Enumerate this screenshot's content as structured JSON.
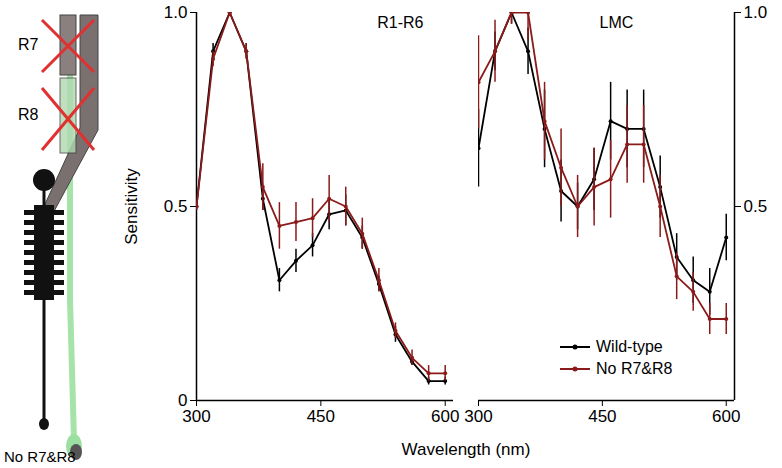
{
  "chart_data": [
    {
      "type": "line",
      "title": "R1-R6",
      "ylabel": "Sensitivity",
      "marker": "circle",
      "x": [
        300,
        320,
        340,
        360,
        380,
        400,
        420,
        440,
        460,
        480,
        500,
        520,
        540,
        560,
        580,
        600
      ],
      "xlim": [
        300,
        610
      ],
      "xticks": [
        300,
        450,
        600
      ],
      "ylim": [
        0,
        1
      ],
      "yticks": [
        0,
        {
          "value": 0.5,
          "label": "0.5"
        },
        {
          "value": 1,
          "label": "1.0"
        }
      ],
      "series": [
        {
          "name": "Wild-type",
          "color": "#000000",
          "values": [
            0.5,
            0.9,
            1.0,
            0.9,
            0.52,
            0.31,
            0.36,
            0.4,
            0.48,
            0.49,
            0.42,
            0.3,
            0.17,
            0.1,
            0.05,
            0.05
          ],
          "errors": [
            0.01,
            0.02,
            0.01,
            0.02,
            0.03,
            0.03,
            0.03,
            0.03,
            0.04,
            0.04,
            0.03,
            0.02,
            0.02,
            0.01,
            0.01,
            0.01
          ]
        },
        {
          "name": "No R7&R8",
          "color": "#8b1a1a",
          "values": [
            0.5,
            0.88,
            1.0,
            0.9,
            0.55,
            0.45,
            0.46,
            0.47,
            0.52,
            0.5,
            0.43,
            0.31,
            0.18,
            0.11,
            0.07,
            0.07
          ],
          "errors": [
            0.01,
            0.02,
            0.01,
            0.02,
            0.06,
            0.06,
            0.05,
            0.05,
            0.06,
            0.05,
            0.04,
            0.03,
            0.02,
            0.02,
            0.02,
            0.02
          ]
        }
      ]
    },
    {
      "type": "line",
      "title": "LMC",
      "marker": "circle",
      "x": [
        300,
        320,
        340,
        360,
        380,
        400,
        420,
        440,
        460,
        480,
        500,
        520,
        540,
        560,
        580,
        600
      ],
      "xlim": [
        300,
        610
      ],
      "xticks": [
        300,
        450,
        600
      ],
      "ylim": [
        0,
        1
      ],
      "yticks": [
        {
          "value": 0.5,
          "label": "0.5"
        },
        {
          "value": 1,
          "label": "1.0"
        }
      ],
      "legend": "bottom-right",
      "series": [
        {
          "name": "Wild-type",
          "color": "#000000",
          "values": [
            0.65,
            0.9,
            1.0,
            0.9,
            0.7,
            0.54,
            0.5,
            0.57,
            0.72,
            0.7,
            0.7,
            0.55,
            0.37,
            0.31,
            0.28,
            0.42
          ],
          "errors": [
            0.1,
            0.05,
            0.03,
            0.06,
            0.1,
            0.08,
            0.06,
            0.08,
            0.1,
            0.1,
            0.1,
            0.08,
            0.06,
            0.06,
            0.06,
            0.06
          ]
        },
        {
          "name": "No R7&R8",
          "color": "#8b1a1a",
          "values": [
            0.82,
            0.9,
            1.0,
            1.0,
            0.72,
            0.6,
            0.5,
            0.55,
            0.57,
            0.66,
            0.66,
            0.5,
            0.32,
            0.28,
            0.21,
            0.21
          ],
          "errors": [
            0.12,
            0.08,
            0.03,
            0.07,
            0.1,
            0.1,
            0.08,
            0.1,
            0.1,
            0.1,
            0.1,
            0.08,
            0.06,
            0.05,
            0.04,
            0.04
          ]
        }
      ]
    }
  ],
  "x_label": "Wavelength (nm)",
  "diagram": {
    "labels": [
      "R7",
      "R8"
    ],
    "caption": "No R7&R8"
  }
}
